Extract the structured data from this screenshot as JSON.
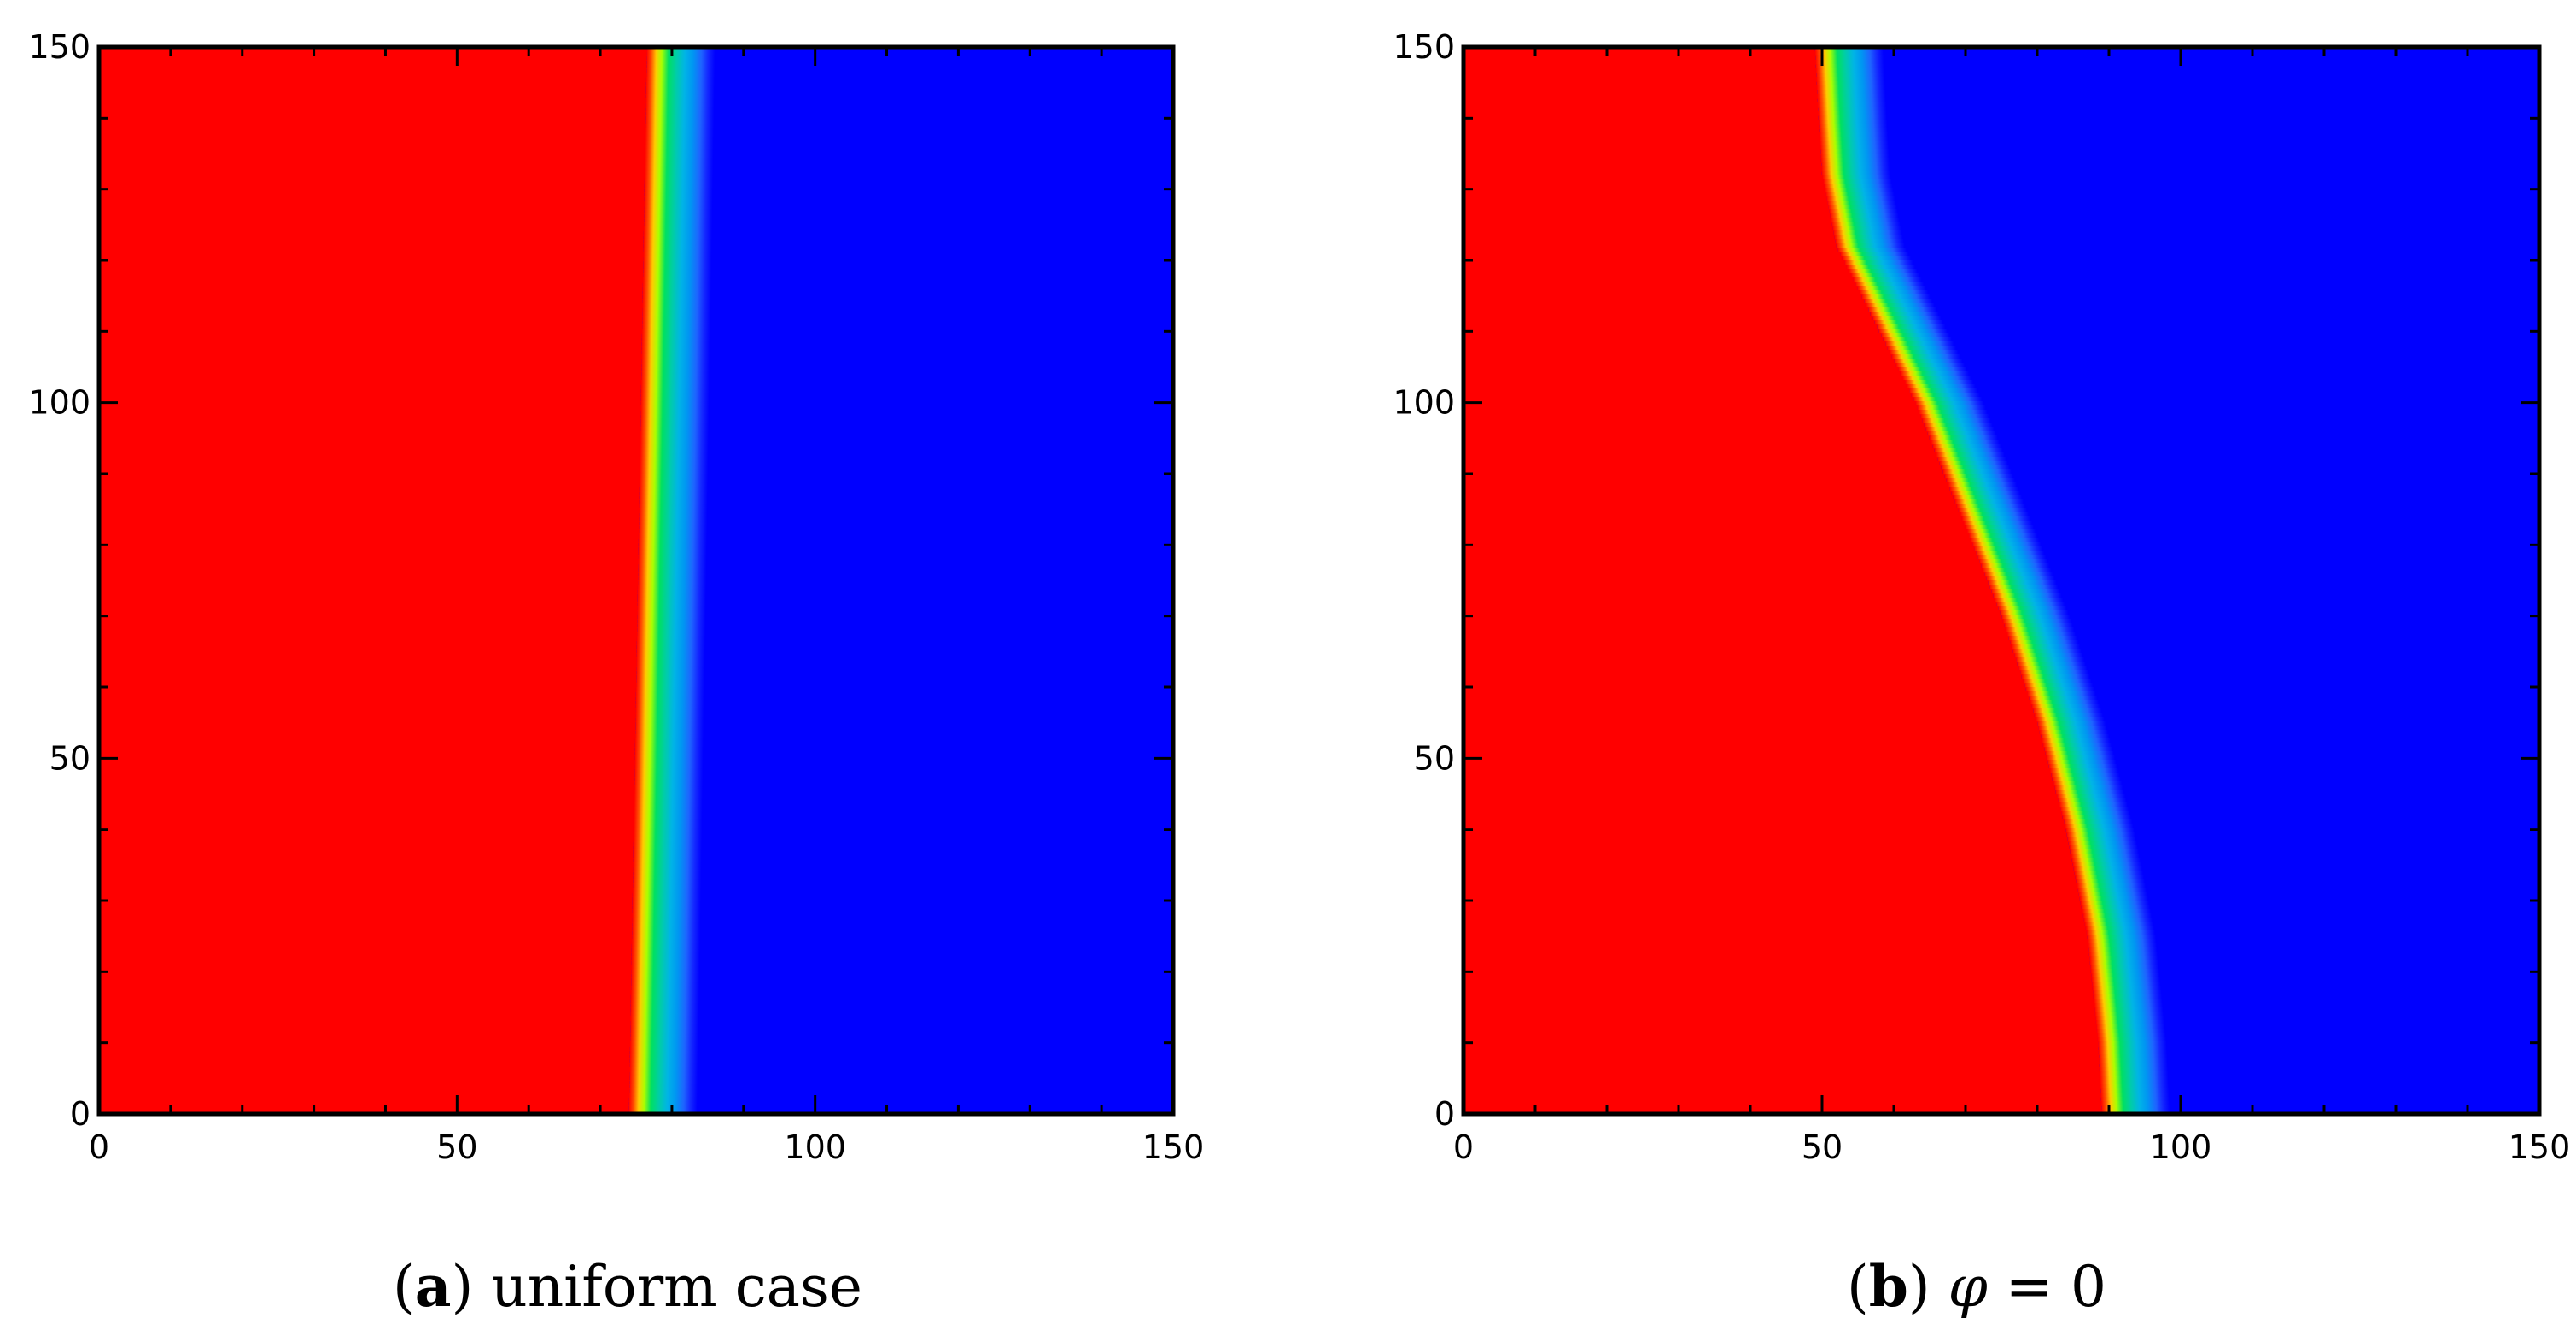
{
  "chart_data": [
    {
      "type": "heatmap",
      "caption": {
        "letter": "a",
        "text": "uniform case"
      },
      "xlim": [
        0,
        150
      ],
      "ylim": [
        0,
        150
      ],
      "x_ticks": [
        0,
        50,
        100,
        150
      ],
      "y_ticks": [
        0,
        50,
        100,
        150
      ],
      "x_tick_labels": [
        "0",
        "50",
        "100",
        "150"
      ],
      "y_tick_labels": [
        "0",
        "50",
        "100",
        "150"
      ],
      "grid": false,
      "colors": {
        "left_region": "#ff0000",
        "right_region": "#0000ff"
      },
      "interface": [
        [
          74,
          0
        ],
        [
          74.5,
          30
        ],
        [
          75,
          60
        ],
        [
          75.5,
          90
        ],
        [
          76,
          120
        ],
        [
          76.5,
          150
        ]
      ]
    },
    {
      "type": "heatmap",
      "caption": {
        "letter": "b",
        "symbol": "φ",
        "text": " = 0"
      },
      "xlim": [
        0,
        150
      ],
      "ylim": [
        0,
        150
      ],
      "x_ticks": [
        0,
        50,
        100,
        150
      ],
      "y_ticks": [
        0,
        50,
        100,
        150
      ],
      "x_tick_labels": [
        "0",
        "50",
        "100",
        "150"
      ],
      "y_tick_labels": [
        "0",
        "50",
        "100",
        "150"
      ],
      "grid": false,
      "colors": {
        "left_region": "#ff0000",
        "right_region": "#0000ff"
      },
      "interface": [
        [
          89,
          0
        ],
        [
          88.5,
          10
        ],
        [
          87,
          25
        ],
        [
          84,
          40
        ],
        [
          80,
          55
        ],
        [
          75,
          70
        ],
        [
          69,
          85
        ],
        [
          63,
          100
        ],
        [
          57,
          112
        ],
        [
          52,
          122
        ],
        [
          50,
          132
        ],
        [
          49.5,
          140
        ],
        [
          49,
          150
        ]
      ]
    }
  ]
}
